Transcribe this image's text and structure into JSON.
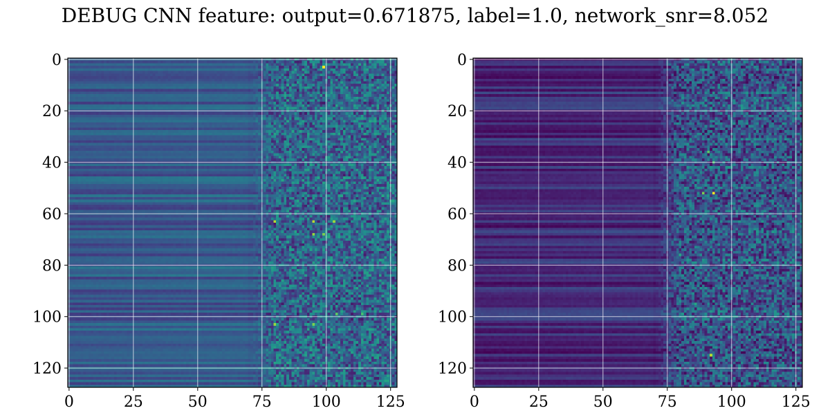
{
  "figure": {
    "title": "DEBUG CNN feature: output=0.671875, label=1.0, network_snr=8.052"
  },
  "chart_data": [
    {
      "type": "heatmap",
      "title": "",
      "xlabel": "",
      "ylabel": "",
      "colormap": "viridis",
      "grid": true,
      "grid_color": "#ffffff",
      "xlim": [
        -0.5,
        127.5
      ],
      "ylim": [
        127.5,
        -0.5
      ],
      "x_ticks": [
        0,
        25,
        50,
        75,
        100,
        125
      ],
      "y_ticks": [
        0,
        20,
        40,
        60,
        80,
        100,
        120
      ],
      "n_rows": 128,
      "n_cols": 128,
      "baseline_level": 0.28,
      "high_activity_col_start": 75,
      "hotspots": [
        {
          "row": 3,
          "col": 99,
          "value": 1.0
        },
        {
          "row": 63,
          "col": 80,
          "value": 0.9
        },
        {
          "row": 63,
          "col": 95,
          "value": 0.9
        },
        {
          "row": 63,
          "col": 103,
          "value": 0.85
        },
        {
          "row": 68,
          "col": 95,
          "value": 0.85
        },
        {
          "row": 68,
          "col": 99,
          "value": 0.8
        },
        {
          "row": 103,
          "col": 80,
          "value": 0.85
        },
        {
          "row": 103,
          "col": 95,
          "value": 0.8
        },
        {
          "row": 99,
          "col": 104,
          "value": 0.75
        },
        {
          "row": 99,
          "col": 114,
          "value": 0.7
        },
        {
          "row": 48,
          "col": 108,
          "value": 0.6
        }
      ]
    },
    {
      "type": "heatmap",
      "title": "",
      "xlabel": "",
      "ylabel": "",
      "colormap": "viridis",
      "grid": true,
      "grid_color": "#ffffff",
      "xlim": [
        -0.5,
        127.5
      ],
      "ylim": [
        127.5,
        -0.5
      ],
      "x_ticks": [
        0,
        25,
        50,
        75,
        100,
        125
      ],
      "y_ticks": [
        0,
        20,
        40,
        60,
        80,
        100,
        120
      ],
      "n_rows": 128,
      "n_cols": 128,
      "baseline_level": 0.12,
      "high_activity_col_start": 75,
      "hotspots": [
        {
          "row": 52,
          "col": 93,
          "value": 1.0
        },
        {
          "row": 52,
          "col": 89,
          "value": 0.8
        },
        {
          "row": 36,
          "col": 91,
          "value": 0.75
        },
        {
          "row": 40,
          "col": 93,
          "value": 0.7
        },
        {
          "row": 115,
          "col": 92,
          "value": 0.9
        },
        {
          "row": 76,
          "col": 80,
          "value": 0.6
        },
        {
          "row": 95,
          "col": 86,
          "value": 0.6
        },
        {
          "row": 15,
          "col": 98,
          "value": 0.55
        }
      ]
    }
  ]
}
